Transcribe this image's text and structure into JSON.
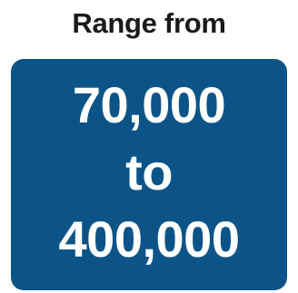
{
  "heading": "Range from",
  "card": {
    "line1": "70,000",
    "line2": "to",
    "line3": "400,000"
  },
  "colors": {
    "card_background": "#0c5488",
    "card_text": "#ffffff",
    "heading_text": "#1a1a1a"
  }
}
